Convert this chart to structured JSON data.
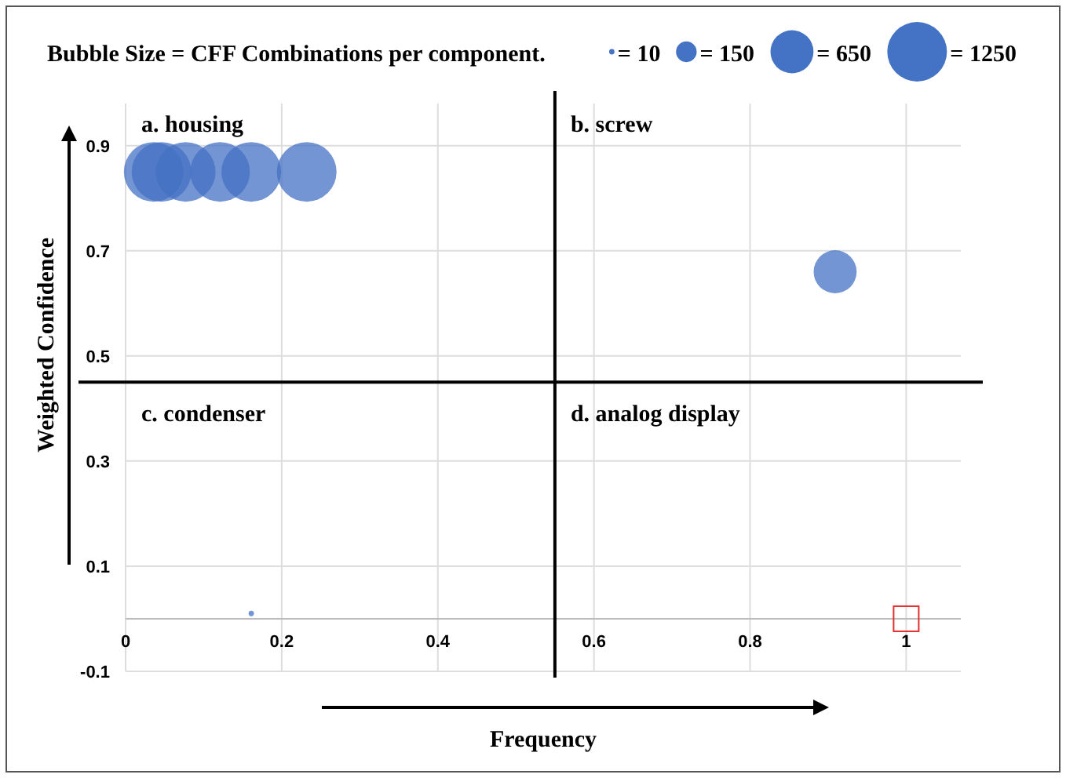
{
  "chart_data": {
    "type": "bubble",
    "legend_title": "Bubble Size = CFF Combinations per component.",
    "xlabel": "Frequency",
    "ylabel": "Weighted Confidence",
    "xlim": [
      0,
      1.07
    ],
    "xticks": [
      0,
      0.2,
      0.4,
      0.6,
      0.8,
      1
    ],
    "ylim": [
      -0.1,
      0.98
    ],
    "yticks": [
      -0.1,
      0.1,
      0.3,
      0.5,
      0.7,
      0.9
    ],
    "grid": true,
    "size_legend": [
      {
        "value": 10,
        "label": "= 10"
      },
      {
        "value": 150,
        "label": "= 150"
      },
      {
        "value": 650,
        "label": "= 650"
      },
      {
        "value": 1250,
        "label": "= 1250"
      }
    ],
    "ref_lines": [
      {
        "axis": "x",
        "value": 0.55,
        "color": "#000000"
      },
      {
        "axis": "y",
        "value": 0.45,
        "color": "#000000"
      }
    ],
    "annotations": [
      "a. housing",
      "b. screw",
      "c. condenser",
      "d. analog display"
    ],
    "series": [
      {
        "color": "#4472c4",
        "x": [
          0.036,
          0.046,
          0.077,
          0.121,
          0.161,
          0.232,
          0.909,
          0.161
        ],
        "values": [
          0.85,
          0.85,
          0.85,
          0.85,
          0.85,
          0.85,
          0.66,
          0.01
        ],
        "sizes": [
          1250,
          1250,
          1250,
          1250,
          1250,
          1250,
          650,
          10
        ]
      },
      {
        "type": "scatter",
        "color": "#e03030",
        "marker": "square",
        "x": [
          1
        ],
        "values": [
          0
        ]
      }
    ]
  }
}
